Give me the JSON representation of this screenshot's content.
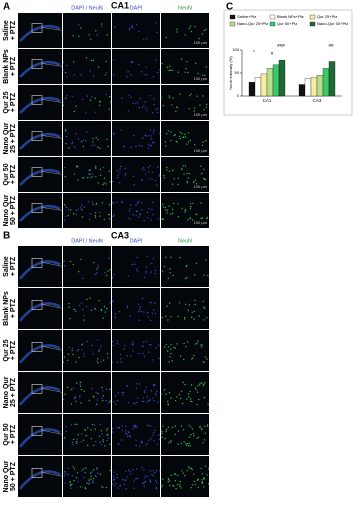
{
  "figure": {
    "panel_a": {
      "label": "A",
      "title": "CA1",
      "columns": [
        "DAPI / NeuN",
        "DAPI",
        "NeuN"
      ],
      "scale_bar": "100 µm"
    },
    "panel_b": {
      "label": "B",
      "title": "CA3",
      "columns": [
        "DAPI / NeuN",
        "DAPI",
        "NeuN"
      ]
    },
    "row_labels": [
      [
        "Saline",
        "+ PTZ"
      ],
      [
        "Blank NPs",
        "+ PTZ"
      ],
      [
        "Qur 25",
        "+ PTZ"
      ],
      [
        "Nano Qur",
        "25 + PTZ"
      ],
      [
        "Qur 50",
        "+ PTZ"
      ],
      [
        "Nano Qur",
        "50 + PTZ"
      ]
    ]
  },
  "chart_data": {
    "type": "bar",
    "panel_label": "C",
    "ylabel": "NeuN intensity (%)",
    "categories": [
      "CA1",
      "CA3"
    ],
    "series": [
      {
        "name": "Saline+Ptz",
        "color": "#111111",
        "values": [
          30,
          25
        ]
      },
      {
        "name": "Blank NPs+Ptz",
        "color": "#ffffff",
        "values": [
          40,
          38
        ]
      },
      {
        "name": "Qur 25+Ptz",
        "color": "#f3f0a0",
        "values": [
          48,
          40
        ]
      },
      {
        "name": "Nano-Qur 25+Ptz",
        "color": "#b8e08a",
        "values": [
          60,
          45
        ]
      },
      {
        "name": "Qur 50+Ptz",
        "color": "#3cc86a",
        "values": [
          68,
          60
        ]
      },
      {
        "name": "Nano-Qur 50+Ptz",
        "color": "#1f6a34",
        "values": [
          78,
          75
        ]
      }
    ],
    "ylim": [
      0,
      100
    ],
    "yticks": [
      0,
      50,
      100
    ],
    "annotations": [
      "*",
      "#",
      "###",
      "##"
    ]
  }
}
